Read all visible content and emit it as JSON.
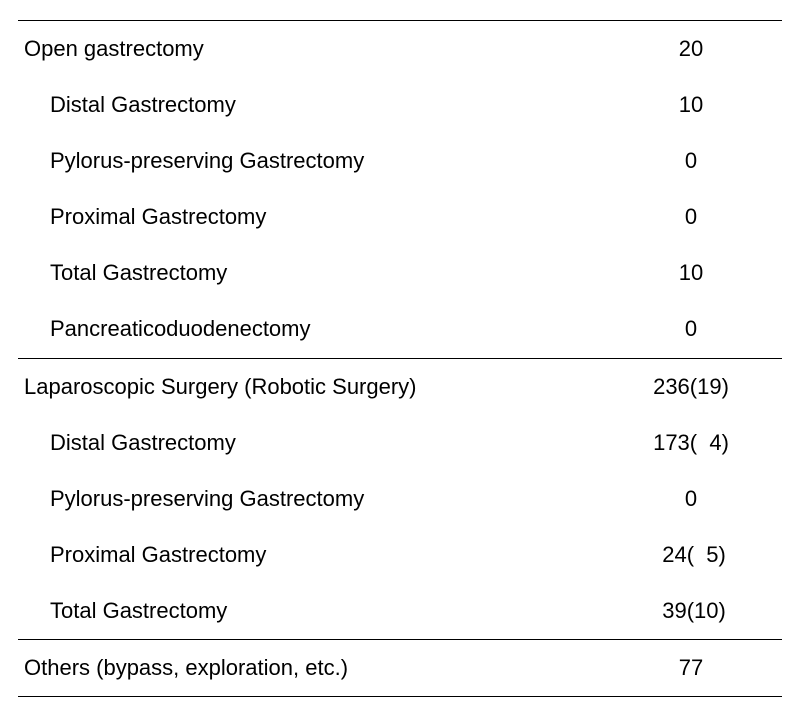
{
  "table": {
    "font_size": 22,
    "text_color": "#000000",
    "background_color": "#ffffff",
    "border_color": "#000000",
    "sections": [
      {
        "header": {
          "label": "Open gastrectomy",
          "value": "20"
        },
        "rows": [
          {
            "label": "Distal Gastrectomy",
            "value": "10"
          },
          {
            "label": "Pylorus-preserving Gastrectomy",
            "value": "0"
          },
          {
            "label": "Proximal Gastrectomy",
            "value": "0"
          },
          {
            "label": "Total Gastrectomy",
            "value": "10"
          },
          {
            "label": "Pancreaticoduodenectomy",
            "value": "0"
          }
        ]
      },
      {
        "header": {
          "label": "Laparoscopic Surgery (Robotic Surgery)",
          "value": "236(19)"
        },
        "rows": [
          {
            "label": "Distal Gastrectomy",
            "value": "173(  4)"
          },
          {
            "label": "Pylorus-preserving Gastrectomy",
            "value": "0"
          },
          {
            "label": "Proximal Gastrectomy",
            "value": " 24(  5)"
          },
          {
            "label": "Total Gastrectomy",
            "value": " 39(10)"
          }
        ]
      },
      {
        "header": {
          "label": "Others (bypass, exploration, etc.)",
          "value": "77"
        },
        "rows": []
      }
    ]
  }
}
